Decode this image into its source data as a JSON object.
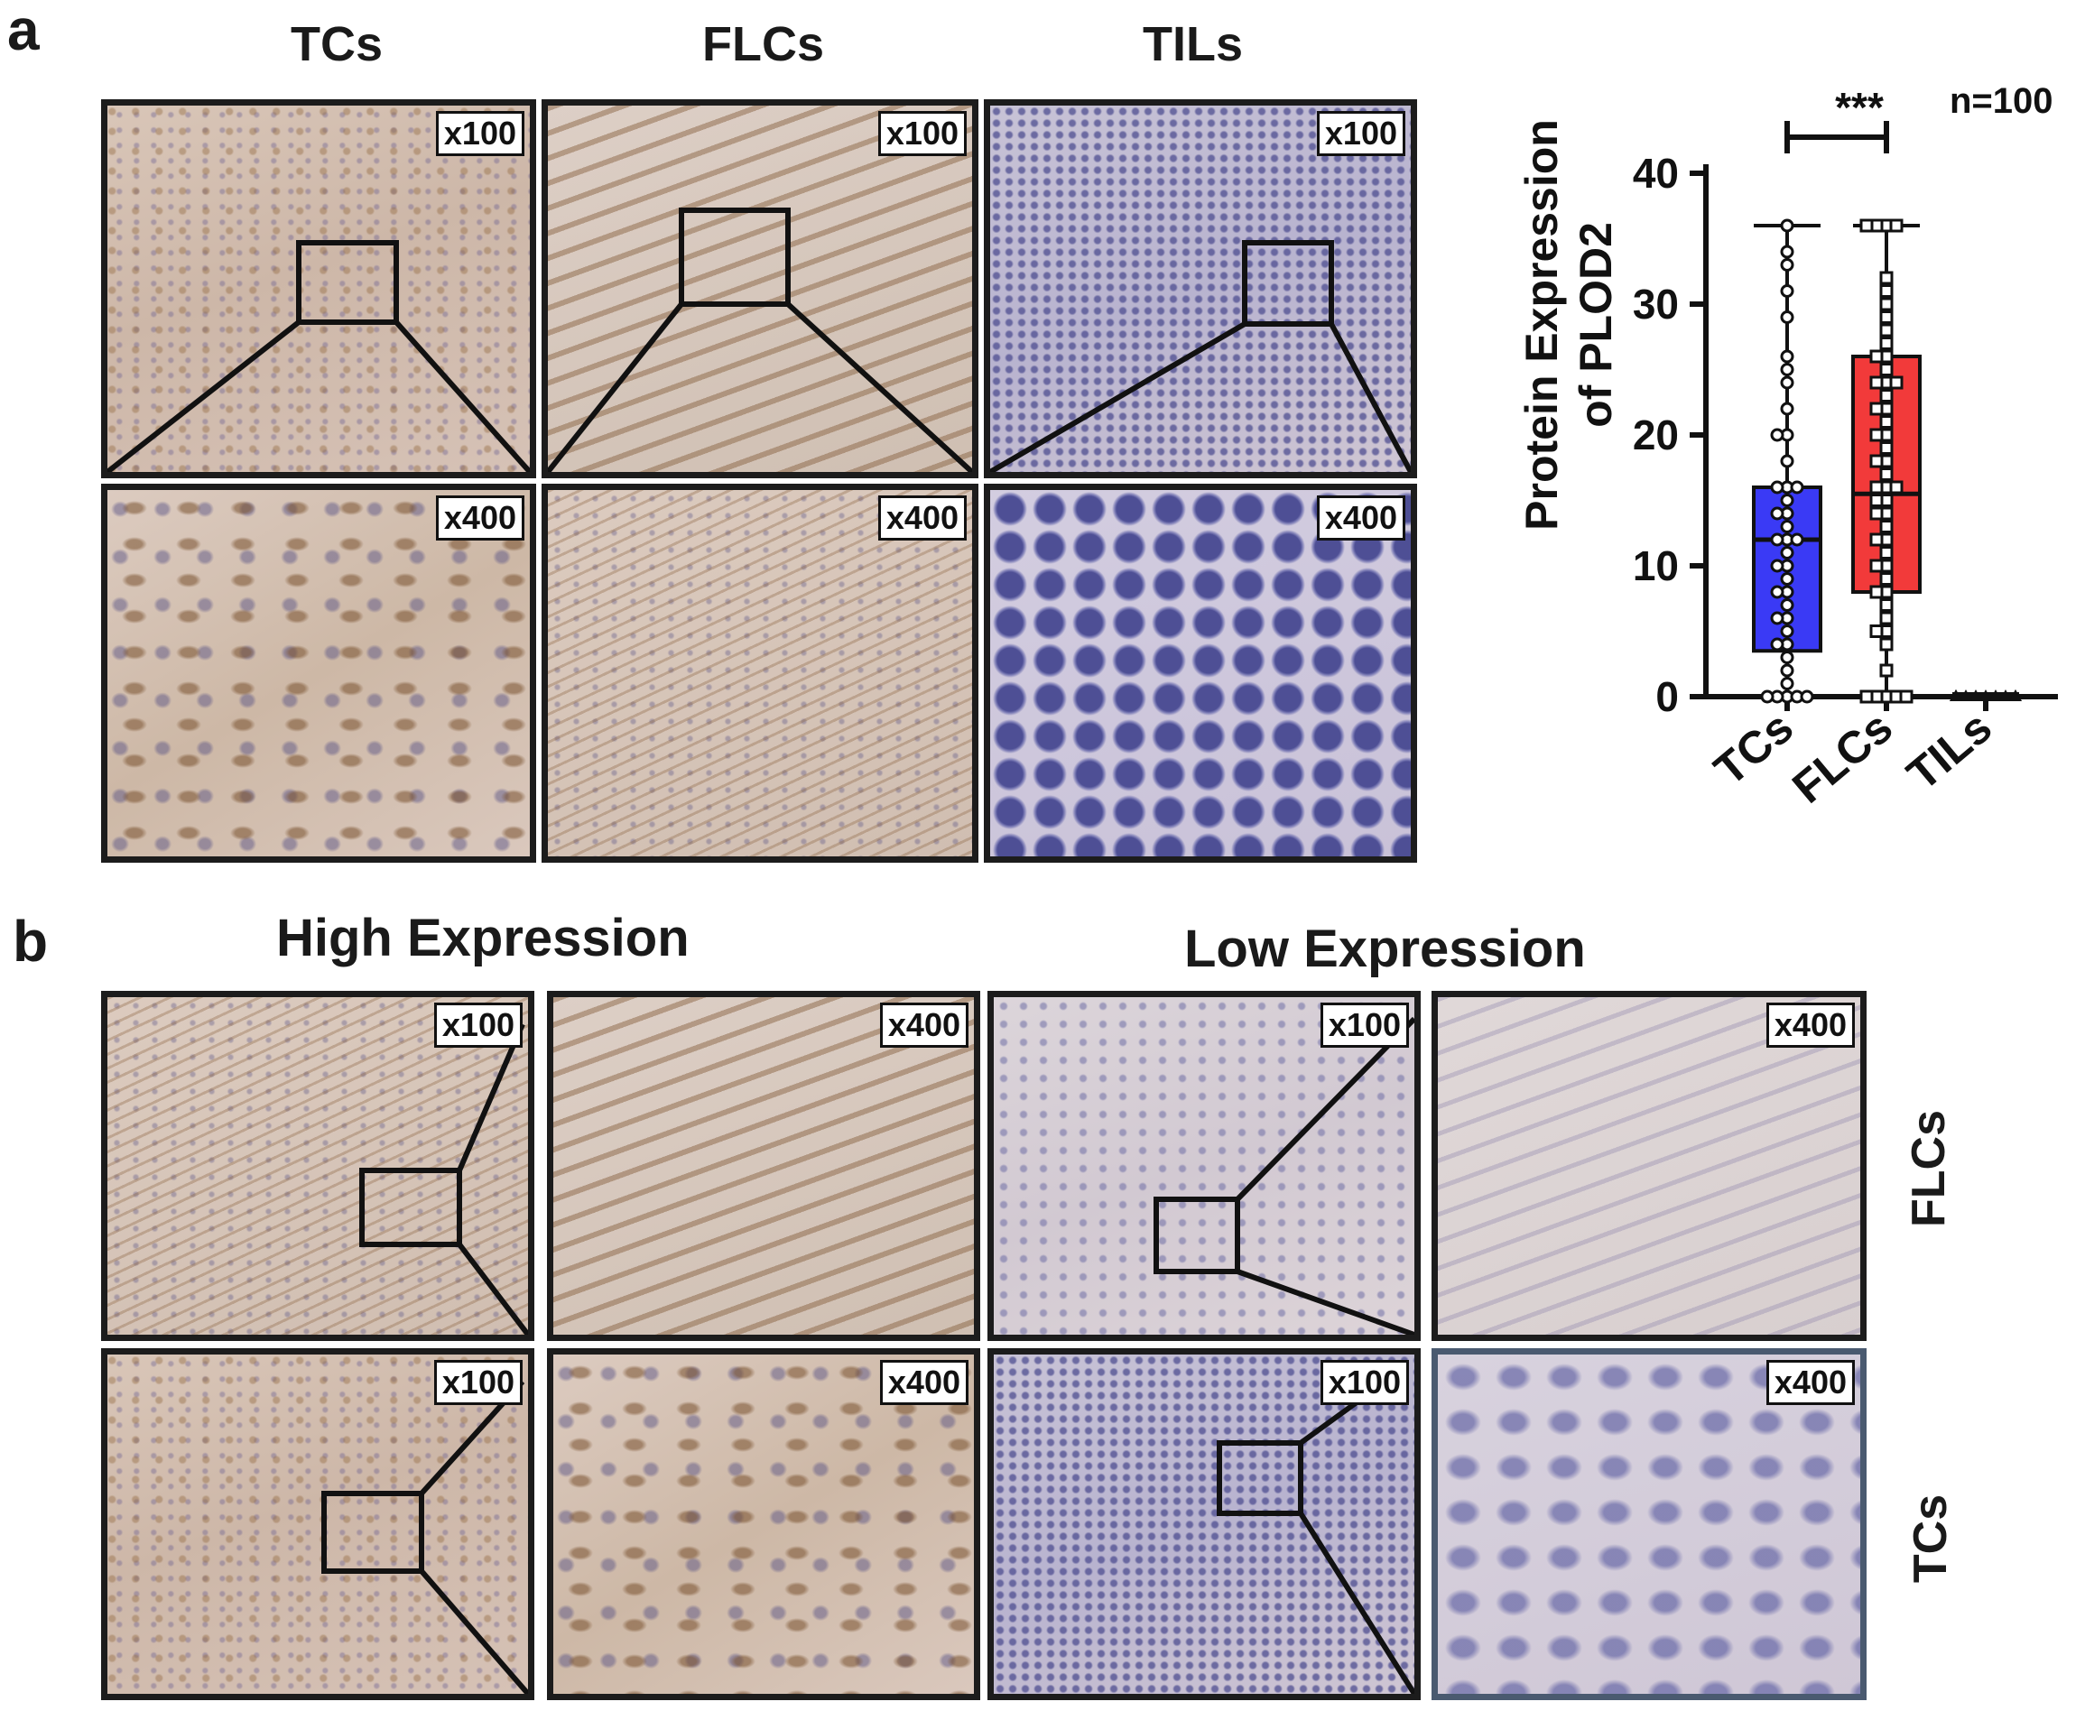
{
  "panel_a": {
    "letter": "a",
    "columns": [
      "TCs",
      "FLCs",
      "TILs"
    ],
    "mag_low": "x100",
    "mag_high": "x400"
  },
  "panel_b": {
    "letter": "b",
    "groups": [
      "High Expression",
      "Low Expression"
    ],
    "rows": [
      "FLCs",
      "TCs"
    ],
    "mag_low": "x100",
    "mag_high": "x400"
  },
  "chart_data": {
    "type": "box",
    "ylabel_line1": "Protein Expression",
    "ylabel_line2": "of PLOD2",
    "n_label": "n=100",
    "significance": "***",
    "categories": [
      "TCs",
      "FLCs",
      "TILs"
    ],
    "ylim": [
      0,
      40
    ],
    "yticks": [
      0,
      10,
      20,
      30,
      40
    ],
    "series": [
      {
        "name": "TCs",
        "min": 0,
        "q1": 3.5,
        "median": 12,
        "q3": 16,
        "max": 36,
        "color": "#3a3af5",
        "points": [
          0,
          0,
          0,
          0,
          0,
          1,
          2,
          3,
          4,
          4,
          5,
          6,
          6,
          7,
          8,
          8,
          9,
          10,
          10,
          11,
          12,
          12,
          12,
          13,
          14,
          14,
          15,
          16,
          16,
          16,
          18,
          20,
          20,
          22,
          24,
          25,
          26,
          29,
          31,
          33,
          34,
          36
        ]
      },
      {
        "name": "FLCs",
        "min": 0,
        "q1": 8,
        "median": 15.5,
        "q3": 26,
        "max": 36,
        "color": "#f23a3a",
        "points": [
          0,
          0,
          0,
          0,
          0,
          2,
          4,
          5,
          5,
          6,
          7,
          8,
          8,
          9,
          10,
          10,
          11,
          12,
          12,
          13,
          14,
          14,
          15,
          15,
          16,
          16,
          16,
          17,
          18,
          18,
          19,
          20,
          20,
          21,
          22,
          22,
          23,
          24,
          24,
          24,
          25,
          26,
          26,
          27,
          28,
          29,
          30,
          31,
          32,
          36,
          36,
          36,
          36
        ]
      },
      {
        "name": "TILs",
        "min": 0,
        "q1": 0,
        "median": 0,
        "q3": 0,
        "max": 0,
        "color": "#222222",
        "points": [
          0,
          0,
          0,
          0,
          0,
          0,
          0,
          0,
          0,
          0
        ]
      }
    ],
    "comparison": [
      "TCs",
      "FLCs"
    ]
  }
}
